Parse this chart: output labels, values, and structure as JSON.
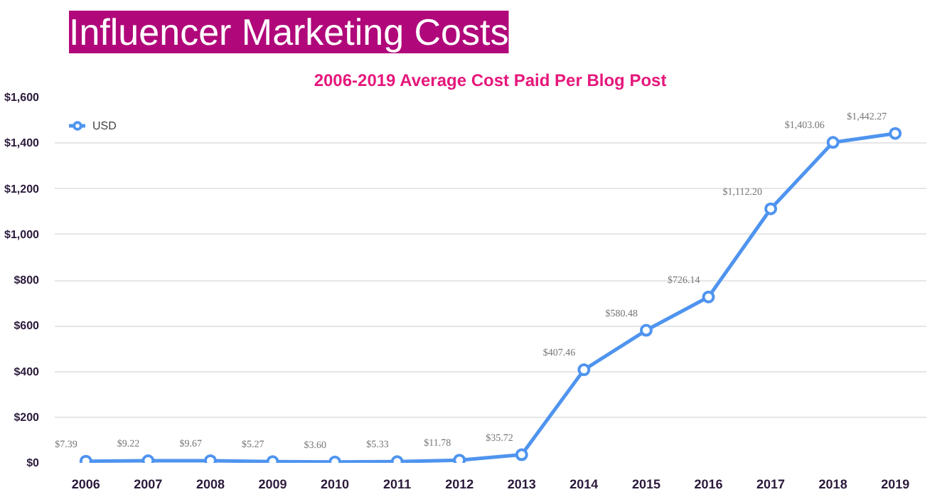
{
  "chart_data": {
    "type": "line",
    "title": "Influencer Marketing Costs",
    "subtitle": "2006-2019 Average Cost Paid Per Blog Post",
    "categories": [
      "2006",
      "2007",
      "2008",
      "2009",
      "2010",
      "2011",
      "2012",
      "2013",
      "2014",
      "2015",
      "2016",
      "2017",
      "2018",
      "2019"
    ],
    "series": [
      {
        "name": "USD",
        "color": "#4f94ef",
        "values": [
          7.39,
          9.22,
          9.67,
          5.27,
          3.6,
          5.33,
          11.78,
          35.72,
          407.46,
          580.48,
          726.14,
          1112.2,
          1403.06,
          1442.27
        ],
        "value_labels": [
          "$7.39",
          "$9.22",
          "$9.67",
          "$5.27",
          "$3.60",
          "$5.33",
          "$11.78",
          "$35.72",
          "$407.46",
          "$580.48",
          "$726.14",
          "$1,112.20",
          "$1,403.06",
          "$1,442.27"
        ]
      }
    ],
    "ylim": [
      0,
      1600
    ],
    "yticks": [
      {
        "value": 0,
        "label": "$0"
      },
      {
        "value": 200,
        "label": "$200"
      },
      {
        "value": 400,
        "label": "$400"
      },
      {
        "value": 600,
        "label": "$600"
      },
      {
        "value": 800,
        "label": "$800"
      },
      {
        "value": 1000,
        "label": "$1,000"
      },
      {
        "value": 1200,
        "label": "$1,200"
      },
      {
        "value": 1400,
        "label": "$1,400"
      },
      {
        "value": 1600,
        "label": "$1,600"
      }
    ],
    "grid": "y",
    "legend": "top left",
    "marker": "circle",
    "line_style": "solid"
  }
}
